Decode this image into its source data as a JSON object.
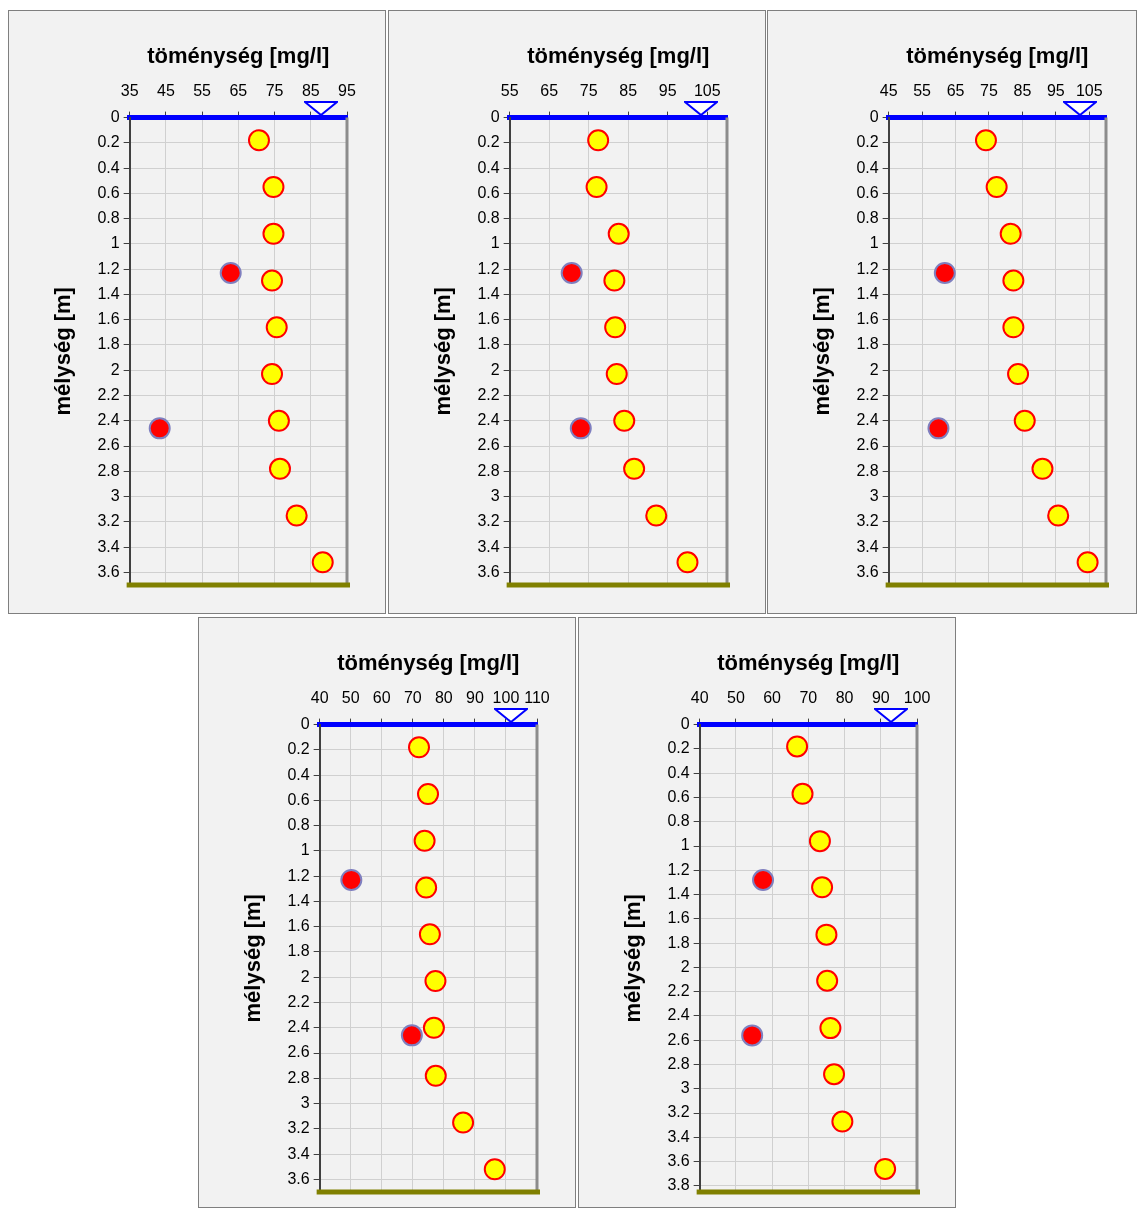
{
  "chart_data": [
    {
      "type": "scatter",
      "xlabel": "töménység [mg/l]",
      "ylabel": "mélység [m]",
      "xlim": [
        35,
        95
      ],
      "xticks": [
        35,
        45,
        55,
        65,
        75,
        85,
        95
      ],
      "ylim": [
        3.7,
        0
      ],
      "yticks": [
        0,
        0.2,
        0.4,
        0.6,
        0.8,
        1,
        1.2,
        1.4,
        1.6,
        1.8,
        2,
        2.2,
        2.4,
        2.6,
        2.8,
        3,
        3.2,
        3.4,
        3.6
      ],
      "grid": true,
      "marker": "circle",
      "series": [
        {
          "color": "#ffff00",
          "x": [
            70.7,
            74.7,
            74.7,
            74.3,
            75.6,
            74.3,
            76.2,
            76.5,
            81.1,
            88.3
          ],
          "values": [
            0.18,
            0.55,
            0.92,
            1.29,
            1.66,
            2.03,
            2.4,
            2.78,
            3.15,
            3.52
          ]
        },
        {
          "color": "#ff0000",
          "x": [
            62.9,
            43.3
          ],
          "values": [
            1.23,
            2.46
          ]
        }
      ],
      "ref_lines": [
        {
          "axis": "y",
          "value": 3.7,
          "color": "#808000"
        }
      ]
    },
    {
      "type": "scatter",
      "xlabel": "töménység [mg/l]",
      "ylabel": "mélység [m]",
      "xlim": [
        55,
        110
      ],
      "xticks": [
        55,
        65,
        75,
        85,
        95,
        105
      ],
      "ylim": [
        3.7,
        0
      ],
      "yticks": [
        0,
        0.2,
        0.4,
        0.6,
        0.8,
        1,
        1.2,
        1.4,
        1.6,
        1.8,
        2,
        2.2,
        2.4,
        2.6,
        2.8,
        3,
        3.2,
        3.4,
        3.6
      ],
      "grid": true,
      "marker": "circle",
      "series": [
        {
          "color": "#ffff00",
          "x": [
            77.4,
            77.0,
            82.6,
            81.5,
            81.7,
            82.1,
            84.0,
            86.5,
            92.1,
            100.0
          ],
          "values": [
            0.18,
            0.55,
            0.92,
            1.29,
            1.66,
            2.03,
            2.4,
            2.78,
            3.15,
            3.52
          ]
        },
        {
          "color": "#ff0000",
          "x": [
            70.7,
            73.0
          ],
          "values": [
            1.23,
            2.46
          ]
        }
      ],
      "ref_lines": [
        {
          "axis": "y",
          "value": 3.7,
          "color": "#808000"
        }
      ]
    },
    {
      "type": "scatter",
      "xlabel": "töménység [mg/l]",
      "ylabel": "mélység [m]",
      "xlim": [
        45,
        110
      ],
      "xticks": [
        45,
        55,
        65,
        75,
        85,
        95,
        105
      ],
      "ylim": [
        3.7,
        0
      ],
      "yticks": [
        0,
        0.2,
        0.4,
        0.6,
        0.8,
        1,
        1.2,
        1.4,
        1.6,
        1.8,
        2,
        2.2,
        2.4,
        2.6,
        2.8,
        3,
        3.2,
        3.4,
        3.6
      ],
      "grid": true,
      "marker": "circle",
      "series": [
        {
          "color": "#ffff00",
          "x": [
            74.1,
            77.3,
            81.5,
            82.3,
            82.3,
            83.7,
            85.7,
            91.0,
            95.7,
            104.5
          ],
          "values": [
            0.18,
            0.55,
            0.92,
            1.29,
            1.66,
            2.03,
            2.4,
            2.78,
            3.15,
            3.52
          ]
        },
        {
          "color": "#ff0000",
          "x": [
            61.8,
            59.9
          ],
          "values": [
            1.23,
            2.46
          ]
        }
      ],
      "ref_lines": [
        {
          "axis": "y",
          "value": 3.7,
          "color": "#808000"
        }
      ]
    },
    {
      "type": "scatter",
      "xlabel": "töménység [mg/l]",
      "ylabel": "mélység [m]",
      "xlim": [
        40,
        110
      ],
      "xticks": [
        40,
        50,
        60,
        70,
        80,
        90,
        100,
        110
      ],
      "ylim": [
        3.7,
        0
      ],
      "yticks": [
        0,
        0.2,
        0.4,
        0.6,
        0.8,
        1,
        1.2,
        1.4,
        1.6,
        1.8,
        2,
        2.2,
        2.4,
        2.6,
        2.8,
        3,
        3.2,
        3.4,
        3.6
      ],
      "grid": true,
      "marker": "circle",
      "series": [
        {
          "color": "#ffff00",
          "x": [
            72.0,
            74.9,
            73.8,
            74.3,
            75.5,
            77.3,
            76.8,
            77.4,
            86.2,
            96.4
          ],
          "values": [
            0.18,
            0.55,
            0.92,
            1.29,
            1.66,
            2.03,
            2.4,
            2.78,
            3.15,
            3.52
          ]
        },
        {
          "color": "#ff0000",
          "x": [
            50.2,
            69.7
          ],
          "values": [
            1.23,
            2.46
          ]
        }
      ],
      "ref_lines": [
        {
          "axis": "y",
          "value": 3.7,
          "color": "#808000"
        }
      ]
    },
    {
      "type": "scatter",
      "xlabel": "töménység [mg/l]",
      "ylabel": "mélység [m]",
      "xlim": [
        40,
        100
      ],
      "xticks": [
        40,
        50,
        60,
        70,
        80,
        90,
        100
      ],
      "ylim": [
        3.85,
        0
      ],
      "yticks": [
        0,
        0.2,
        0.4,
        0.6,
        0.8,
        1,
        1.2,
        1.4,
        1.6,
        1.8,
        2,
        2.2,
        2.4,
        2.6,
        2.8,
        3,
        3.2,
        3.4,
        3.6,
        3.8
      ],
      "grid": true,
      "marker": "circle",
      "series": [
        {
          "color": "#ffff00",
          "x": [
            66.9,
            68.4,
            73.2,
            73.8,
            75.0,
            75.2,
            76.1,
            77.1,
            79.4,
            91.2
          ],
          "values": [
            0.18,
            0.57,
            0.96,
            1.34,
            1.73,
            2.11,
            2.5,
            2.88,
            3.27,
            3.66
          ]
        },
        {
          "color": "#ff0000",
          "x": [
            57.5,
            54.5
          ],
          "values": [
            1.28,
            2.56
          ]
        }
      ],
      "ref_lines": [
        {
          "axis": "y",
          "value": 3.85,
          "color": "#808000"
        }
      ]
    }
  ]
}
